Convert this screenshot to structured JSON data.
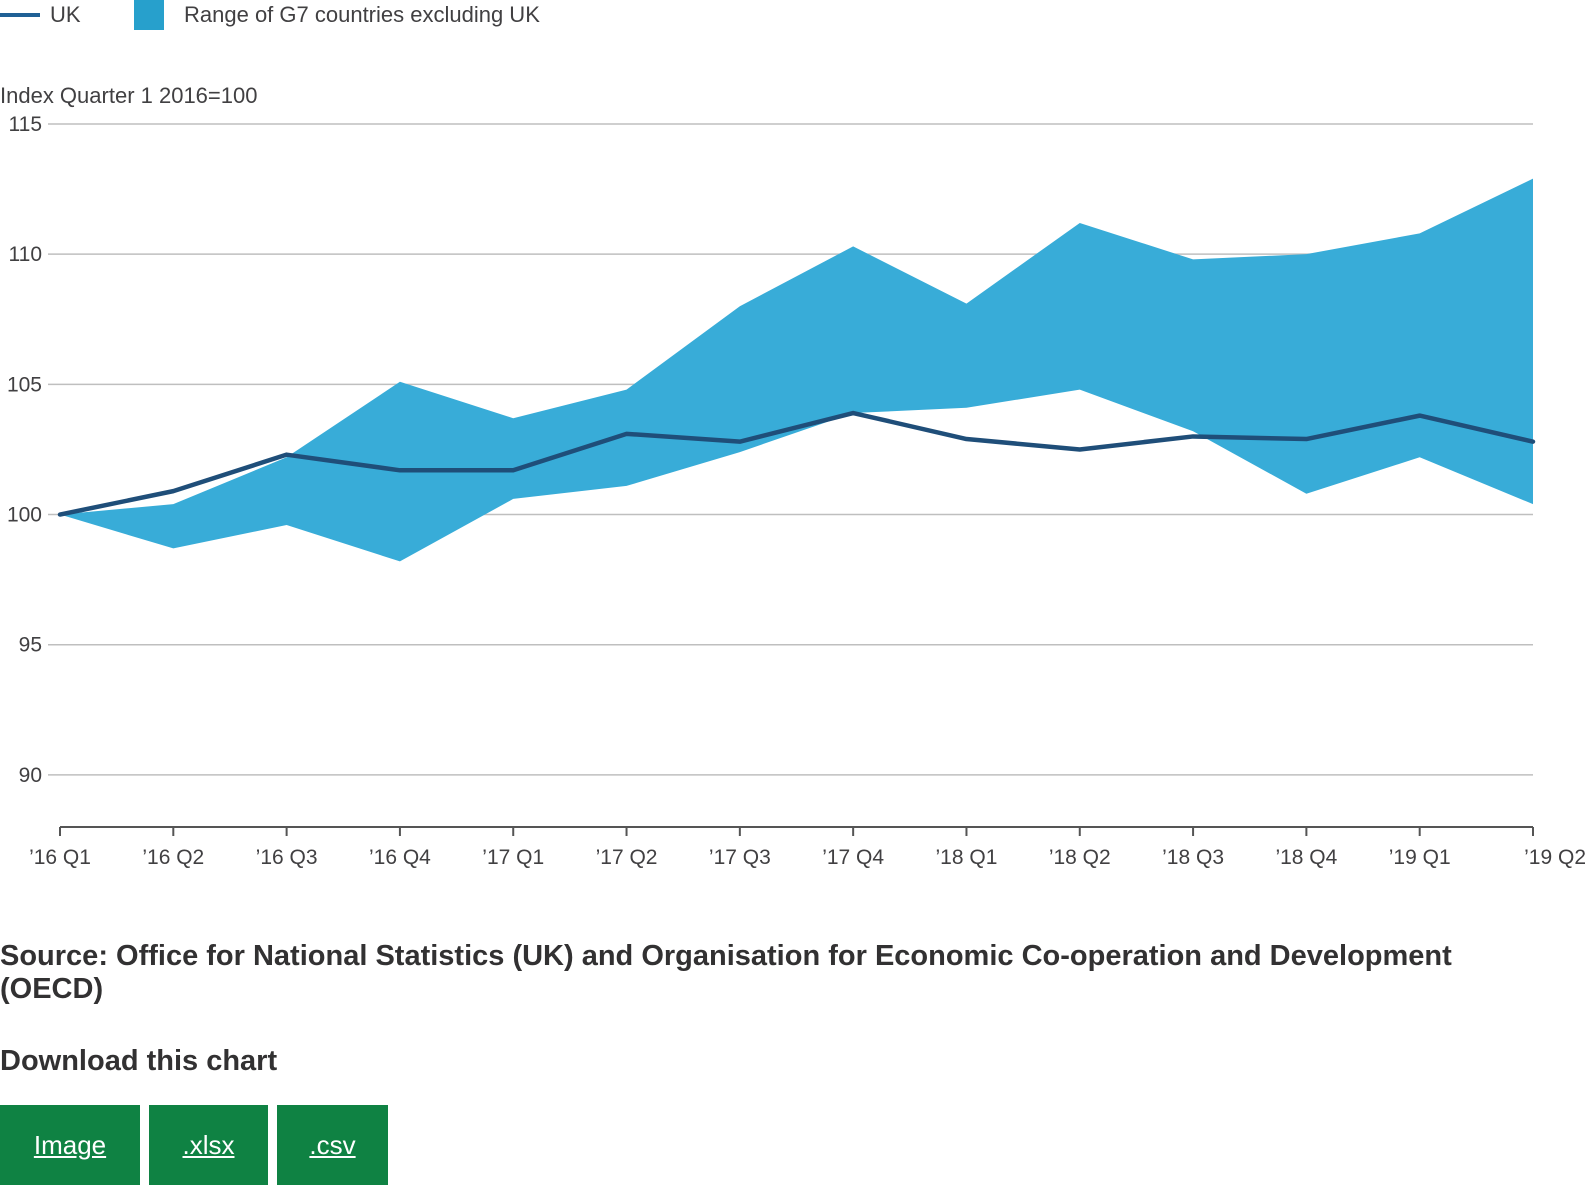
{
  "legend": {
    "uk_label": "UK",
    "range_label": "Range of G7 countries excluding UK"
  },
  "colors": {
    "uk_line": "#1f4e79",
    "range_fill": "#38acd8",
    "grid": "#bfbfbf",
    "button": "#0f8243"
  },
  "chart_data": {
    "type": "area",
    "ylabel": "Index Quarter 1 2016=100",
    "ylim": [
      88,
      115
    ],
    "yticks": [
      90,
      95,
      100,
      105,
      110,
      115
    ],
    "grid": true,
    "legend_position": "top-left",
    "categories": [
      "’16 Q1",
      "’16 Q2",
      "’16 Q3",
      "’16 Q4",
      "’17 Q1",
      "’17 Q2",
      "’17 Q3",
      "’17 Q4",
      "’18 Q1",
      "’18 Q2",
      "’18 Q3",
      "’18 Q4",
      "’19 Q1",
      "’19 Q2"
    ],
    "series": [
      {
        "name": "UK",
        "kind": "line",
        "values": [
          100.0,
          100.9,
          102.3,
          101.7,
          101.7,
          103.1,
          102.8,
          103.9,
          102.9,
          102.5,
          103.0,
          102.9,
          103.8,
          102.8
        ]
      },
      {
        "name": "Range of G7 countries excluding UK",
        "kind": "range",
        "low": [
          100.0,
          98.7,
          99.6,
          98.2,
          100.6,
          101.1,
          102.4,
          103.9,
          104.1,
          104.8,
          103.2,
          100.8,
          102.2,
          100.4
        ],
        "high": [
          100.0,
          100.4,
          102.2,
          105.1,
          103.7,
          104.8,
          108.0,
          110.3,
          108.1,
          111.2,
          109.8,
          110.0,
          110.8,
          112.9
        ]
      }
    ]
  },
  "source": "Source: Office for National Statistics (UK) and Organisation for Economic Co-operation and Development (OECD)",
  "download": {
    "title": "Download this chart",
    "buttons": [
      ".csv",
      ".xlsx",
      "Image"
    ],
    "image_label": "Image",
    "xlsx_label": ".xlsx",
    "csv_label": ".csv"
  }
}
